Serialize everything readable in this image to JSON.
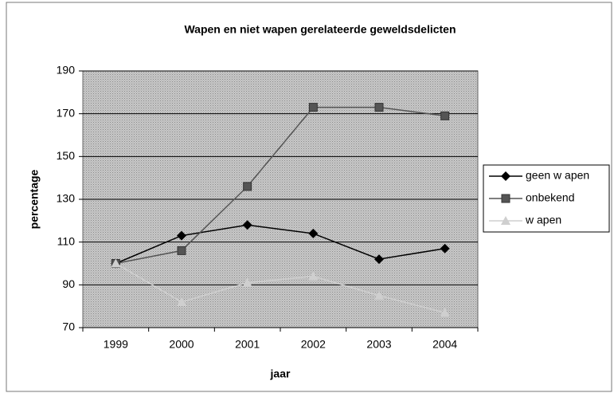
{
  "chart_data": {
    "type": "line",
    "title": "Wapen en niet wapen gerelateerde geweldsdelicten",
    "x_label": "jaar",
    "y_label": "percentage",
    "categories": [
      "1999",
      "2000",
      "2001",
      "2002",
      "2003",
      "2004"
    ],
    "series": [
      {
        "name": "geen w apen",
        "color": "#000000",
        "marker": "diamond",
        "values": [
          100,
          113,
          118,
          114,
          102,
          107
        ]
      },
      {
        "name": "onbekend",
        "color": "#555555",
        "marker": "square",
        "values": [
          100,
          106,
          136,
          173,
          173,
          169
        ]
      },
      {
        "name": "w apen",
        "color": "#cfcfcf",
        "marker": "triangle",
        "values": [
          100,
          82,
          91,
          94,
          85,
          77
        ]
      }
    ],
    "ylim": [
      70,
      190
    ],
    "yticks": [
      70,
      90,
      110,
      130,
      150,
      170,
      190
    ],
    "grid": true,
    "legend": "right"
  }
}
